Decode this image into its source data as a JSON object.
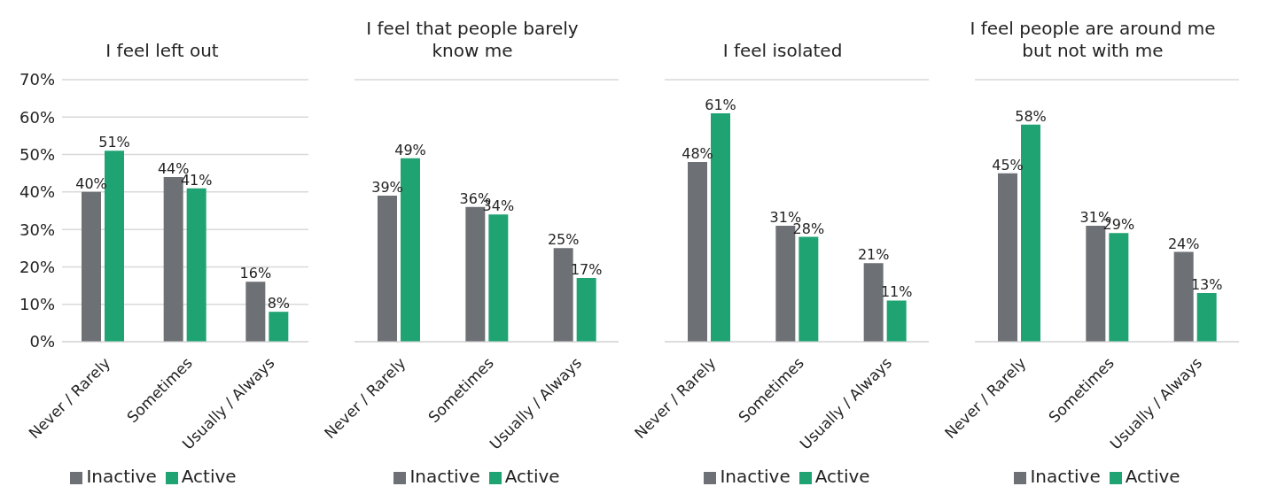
{
  "chart_data": [
    {
      "type": "bar",
      "title": "I feel left out",
      "categories": [
        "Never / Rarely",
        "Sometimes",
        "Usually / Always"
      ],
      "series": [
        {
          "name": "Inactive",
          "color": "#6d7175",
          "values": [
            40,
            44,
            16
          ],
          "value_labels": [
            "40%",
            "44%",
            "16%"
          ]
        },
        {
          "name": "Active",
          "color": "#1fa372",
          "values": [
            51,
            41,
            8
          ],
          "value_labels": [
            "51%",
            "41%",
            "8%"
          ]
        }
      ],
      "ylim": [
        0,
        70
      ],
      "yticks": [
        {
          "value": 0,
          "label": "0%"
        },
        {
          "value": 10,
          "label": "10%"
        },
        {
          "value": 20,
          "label": "20%"
        },
        {
          "value": 30,
          "label": "30%"
        },
        {
          "value": 40,
          "label": "40%"
        },
        {
          "value": 50,
          "label": "50%"
        },
        {
          "value": 60,
          "label": "60%"
        },
        {
          "value": 70,
          "label": "70%"
        }
      ],
      "grid": "y",
      "legend": "bottom"
    },
    {
      "type": "bar",
      "title": "I feel that people barely know me",
      "categories": [
        "Never / Rarely",
        "Sometimes",
        "Usually / Always"
      ],
      "series": [
        {
          "name": "Inactive",
          "color": "#6d7175",
          "values": [
            39,
            36,
            25
          ],
          "value_labels": [
            "39%",
            "36%",
            "25%"
          ]
        },
        {
          "name": "Active",
          "color": "#1fa372",
          "values": [
            49,
            34,
            17
          ],
          "value_labels": [
            "49%",
            "34%",
            "17%"
          ]
        }
      ],
      "ylim": [
        0,
        70
      ],
      "yticks": [
        {
          "value": 0,
          "label": null
        },
        {
          "value": 10,
          "label": null
        },
        {
          "value": 20,
          "label": null
        },
        {
          "value": 30,
          "label": null
        },
        {
          "value": 40,
          "label": null
        },
        {
          "value": 50,
          "label": null
        },
        {
          "value": 60,
          "label": null
        },
        {
          "value": 70,
          "label": null
        }
      ],
      "grid": "y",
      "legend": "bottom",
      "tick_labels": "x"
    },
    {
      "type": "bar",
      "title": "I feel isolated",
      "categories": [
        "Never / Rarely",
        "Sometimes",
        "Usually / Always"
      ],
      "series": [
        {
          "name": "Inactive",
          "color": "#6d7175",
          "values": [
            48,
            31,
            21
          ],
          "value_labels": [
            "48%",
            "31%",
            "21%"
          ]
        },
        {
          "name": "Active",
          "color": "#1fa372",
          "values": [
            61,
            28,
            11
          ],
          "value_labels": [
            "61%",
            "28%",
            "11%"
          ]
        }
      ],
      "ylim": [
        0,
        70
      ],
      "yticks": [
        {
          "value": 0,
          "label": null
        },
        {
          "value": 10,
          "label": null
        },
        {
          "value": 20,
          "label": null
        },
        {
          "value": 30,
          "label": null
        },
        {
          "value": 40,
          "label": null
        },
        {
          "value": 50,
          "label": null
        },
        {
          "value": 60,
          "label": null
        },
        {
          "value": 70,
          "label": null
        }
      ],
      "grid": "y",
      "legend": "bottom",
      "tick_labels": "x"
    },
    {
      "type": "bar",
      "title": "I feel people are around me but not with me",
      "categories": [
        "Never / Rarely",
        "Sometimes",
        "Usually / Always"
      ],
      "series": [
        {
          "name": "Inactive",
          "color": "#6d7175",
          "values": [
            45,
            31,
            24
          ],
          "value_labels": [
            "45%",
            "31%",
            "24%"
          ]
        },
        {
          "name": "Active",
          "color": "#1fa372",
          "values": [
            58,
            29,
            13
          ],
          "value_labels": [
            "58%",
            "29%",
            "13%"
          ]
        }
      ],
      "ylim": [
        0,
        70
      ],
      "yticks": [
        {
          "value": 0,
          "label": null
        },
        {
          "value": 10,
          "label": null
        },
        {
          "value": 20,
          "label": null
        },
        {
          "value": 30,
          "label": null
        },
        {
          "value": 40,
          "label": null
        },
        {
          "value": 50,
          "label": null
        },
        {
          "value": 60,
          "label": null
        },
        {
          "value": 70,
          "label": null
        }
      ],
      "grid": "y",
      "legend": "bottom",
      "tick_labels": "x"
    }
  ]
}
